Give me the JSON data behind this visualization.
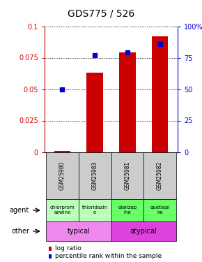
{
  "title": "GDS775 / 526",
  "samples": [
    "GSM25980",
    "GSM25983",
    "GSM25981",
    "GSM25982"
  ],
  "log_ratio": [
    0.001,
    0.063,
    0.079,
    0.092
  ],
  "percentile_rank": [
    50,
    77,
    79,
    86
  ],
  "ylim_left": [
    0,
    0.1
  ],
  "ylim_right": [
    0,
    100
  ],
  "yticks_left": [
    0,
    0.025,
    0.05,
    0.075,
    0.1
  ],
  "yticks_right": [
    0,
    25,
    50,
    75,
    100
  ],
  "bar_color": "#cc0000",
  "dot_color": "#0000cc",
  "agent_labels": [
    "chlorprom\nazwine",
    "thioridazin\ne",
    "olanzap\nine",
    "quetiapi\nne"
  ],
  "agent_colors_typical": "#bbffbb",
  "agent_colors_atypical": "#66ff66",
  "other_typical": "typical",
  "other_atypical": "atypical",
  "other_color_typical": "#ee88ee",
  "other_color_atypical": "#dd44dd",
  "sample_bg_color": "#cccccc",
  "title_fontsize": 10,
  "bar_width": 0.5,
  "legend_log_ratio": "log ratio",
  "legend_percentile": "percentile rank within the sample",
  "xlim": [
    -0.55,
    3.55
  ]
}
